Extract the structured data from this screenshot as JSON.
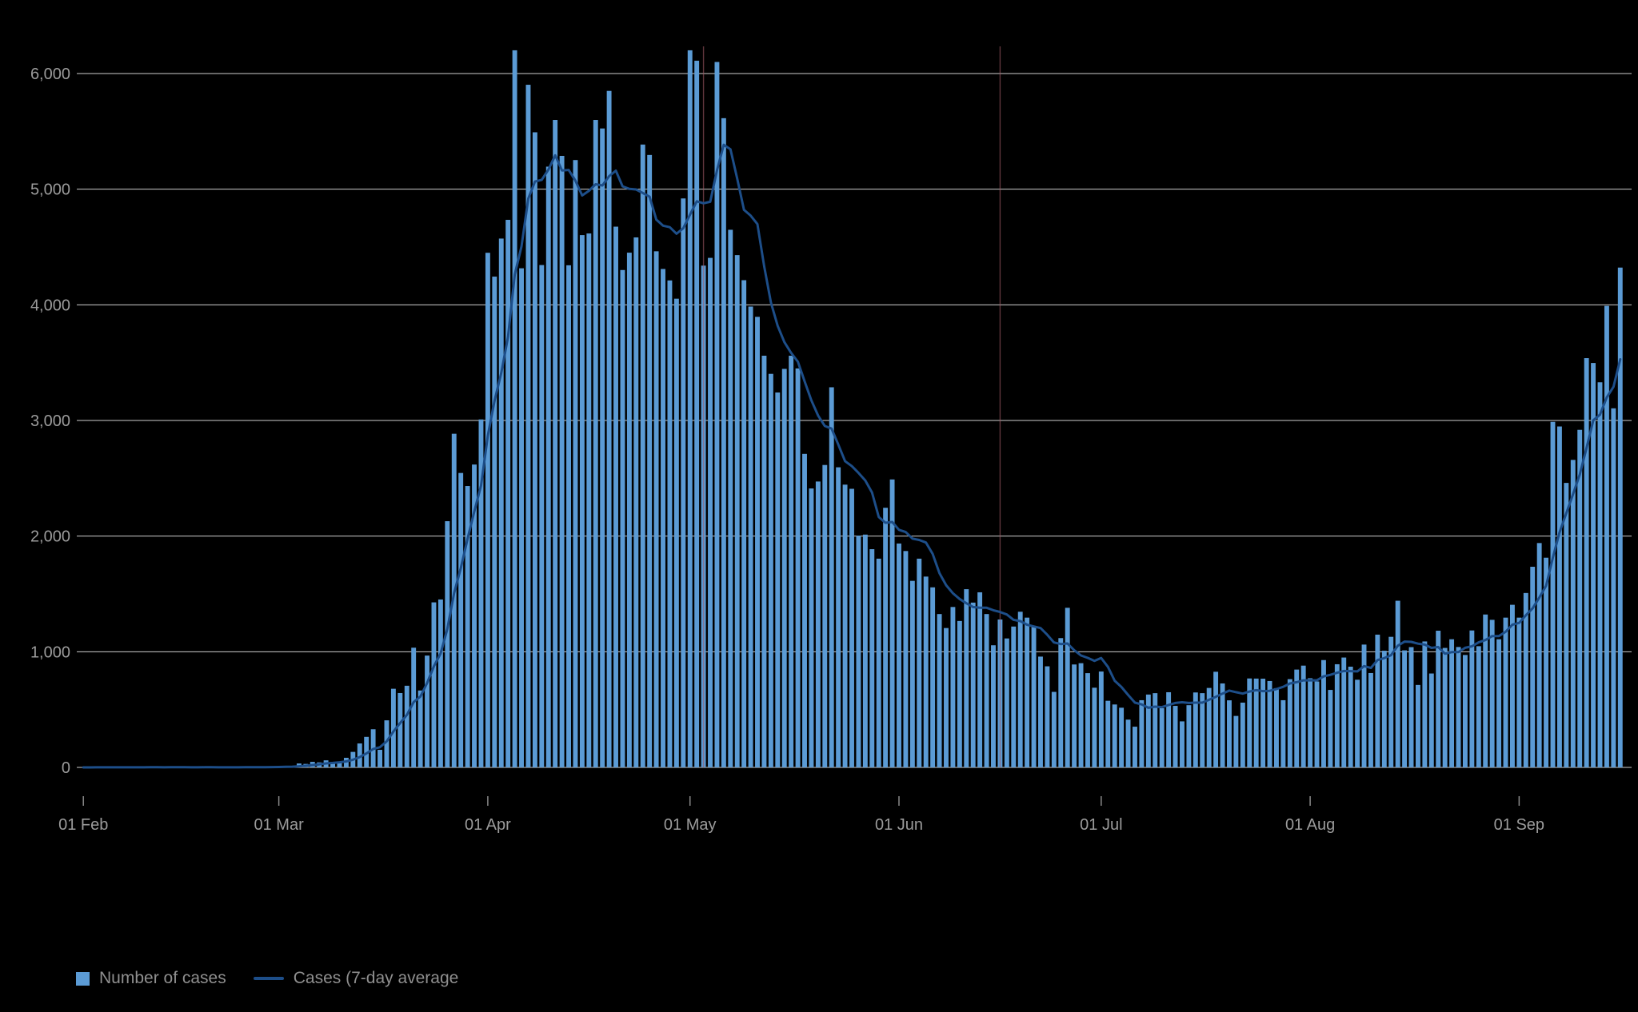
{
  "page": {
    "background": "#000000"
  },
  "legend": {
    "cases_label": "Number of cases",
    "avg_label": "Cases (7-day average"
  },
  "colors": {
    "bar": "#5b9bd5",
    "line": "#1d4e89",
    "grid": "#f2f2f2",
    "axis_text": "#9b9b9b",
    "tick": "#8a8a8a",
    "marker": "#a05a66",
    "legend_text": "#8f8f8f"
  },
  "chart_data": {
    "type": "bar",
    "title": "",
    "xlabel": "",
    "ylabel": "",
    "x_start": "01 Feb",
    "x_end": "16 Sep",
    "grid": true,
    "legend_position": "bottom-left",
    "y_axis": {
      "min": 0,
      "max": 6400,
      "gridline_values": [
        0,
        1000,
        2000,
        3000,
        4000,
        5000,
        6000
      ],
      "tick_labels": [
        "0",
        "1,000",
        "2,000",
        "3,000",
        "4,000",
        "5,000",
        "6,000"
      ]
    },
    "x_ticks": [
      {
        "label": "01 Feb",
        "day": 0
      },
      {
        "label": "01 Mar",
        "day": 29
      },
      {
        "label": "01 Apr",
        "day": 60
      },
      {
        "label": "01 May",
        "day": 90
      },
      {
        "label": "01 Jun",
        "day": 121
      },
      {
        "label": "01 Jul",
        "day": 151
      },
      {
        "label": "01 Aug",
        "day": 182
      },
      {
        "label": "01 Sep",
        "day": 213
      }
    ],
    "event_markers": [
      {
        "day": 92
      },
      {
        "day": 136
      }
    ],
    "series": [
      {
        "name": "Number of cases",
        "type": "bar",
        "values": [
          0,
          0,
          2,
          0,
          0,
          1,
          1,
          2,
          0,
          3,
          1,
          0,
          0,
          4,
          0,
          1,
          0,
          0,
          3,
          0,
          0,
          0,
          0,
          2,
          3,
          6,
          3,
          2,
          4,
          3,
          13,
          11,
          34,
          30,
          48,
          43,
          61,
          46,
          50,
          83,
          134,
          207,
          264,
          330,
          152,
          407,
          680,
          643,
          706,
          1035,
          665,
          967,
          1427,
          1452,
          2129,
          2885,
          2546,
          2433,
          2619,
          3009,
          4450,
          4244,
          4573,
          4735,
          6201,
          4316,
          5903,
          5492,
          4344,
          5195,
          5599,
          5288,
          4342,
          5252,
          4603,
          4617,
          5599,
          5525,
          5850,
          4676,
          4301,
          4451,
          4583,
          5386,
          5296,
          4463,
          4310,
          4211,
          4053,
          4920,
          6201,
          6111,
          4339,
          4406,
          6100,
          5614,
          4649,
          4430,
          4213,
          3985,
          3896,
          3560,
          3403,
          3242,
          3446,
          3560,
          3450,
          2711,
          2412,
          2472,
          2615,
          3287,
          2595,
          2445,
          2409,
          2004,
          2013,
          1887,
          1805,
          2245,
          2490,
          1936,
          1871,
          1613,
          1805,
          1650,
          1557,
          1326,
          1205,
          1387,
          1266,
          1541,
          1425,
          1514,
          1326,
          1056,
          1279,
          1115,
          1218,
          1346,
          1295,
          1221,
          958,
          874,
          653,
          1118,
          1380,
          890,
          901,
          815,
          689,
          829,
          576,
          544,
          516,
          413,
          352,
          581,
          630,
          642,
          512,
          650,
          532,
          398,
          538,
          648,
          642,
          687,
          827,
          726,
          580,
          445,
          560,
          769,
          768,
          767,
          747,
          685,
          581,
          763,
          846,
          880,
          771,
          743,
          928,
          670,
          892,
          950,
          871,
          758,
          1062,
          816,
          1148,
          1009,
          1129,
          1441,
          1012,
          1040,
          713,
          1089,
          812,
          1182,
          1033,
          1108,
          1041,
          972,
          1184,
          1048,
          1322,
          1276,
          1108,
          1295,
          1406,
          1295,
          1508,
          1735,
          1940,
          1813,
          2988,
          2948,
          2460,
          2659,
          2919,
          3539,
          3497,
          3330,
          3991,
          3105,
          4322
        ]
      },
      {
        "name": "Cases (7-day average",
        "type": "line",
        "derived": "7-day trailing average of bar values"
      }
    ]
  }
}
